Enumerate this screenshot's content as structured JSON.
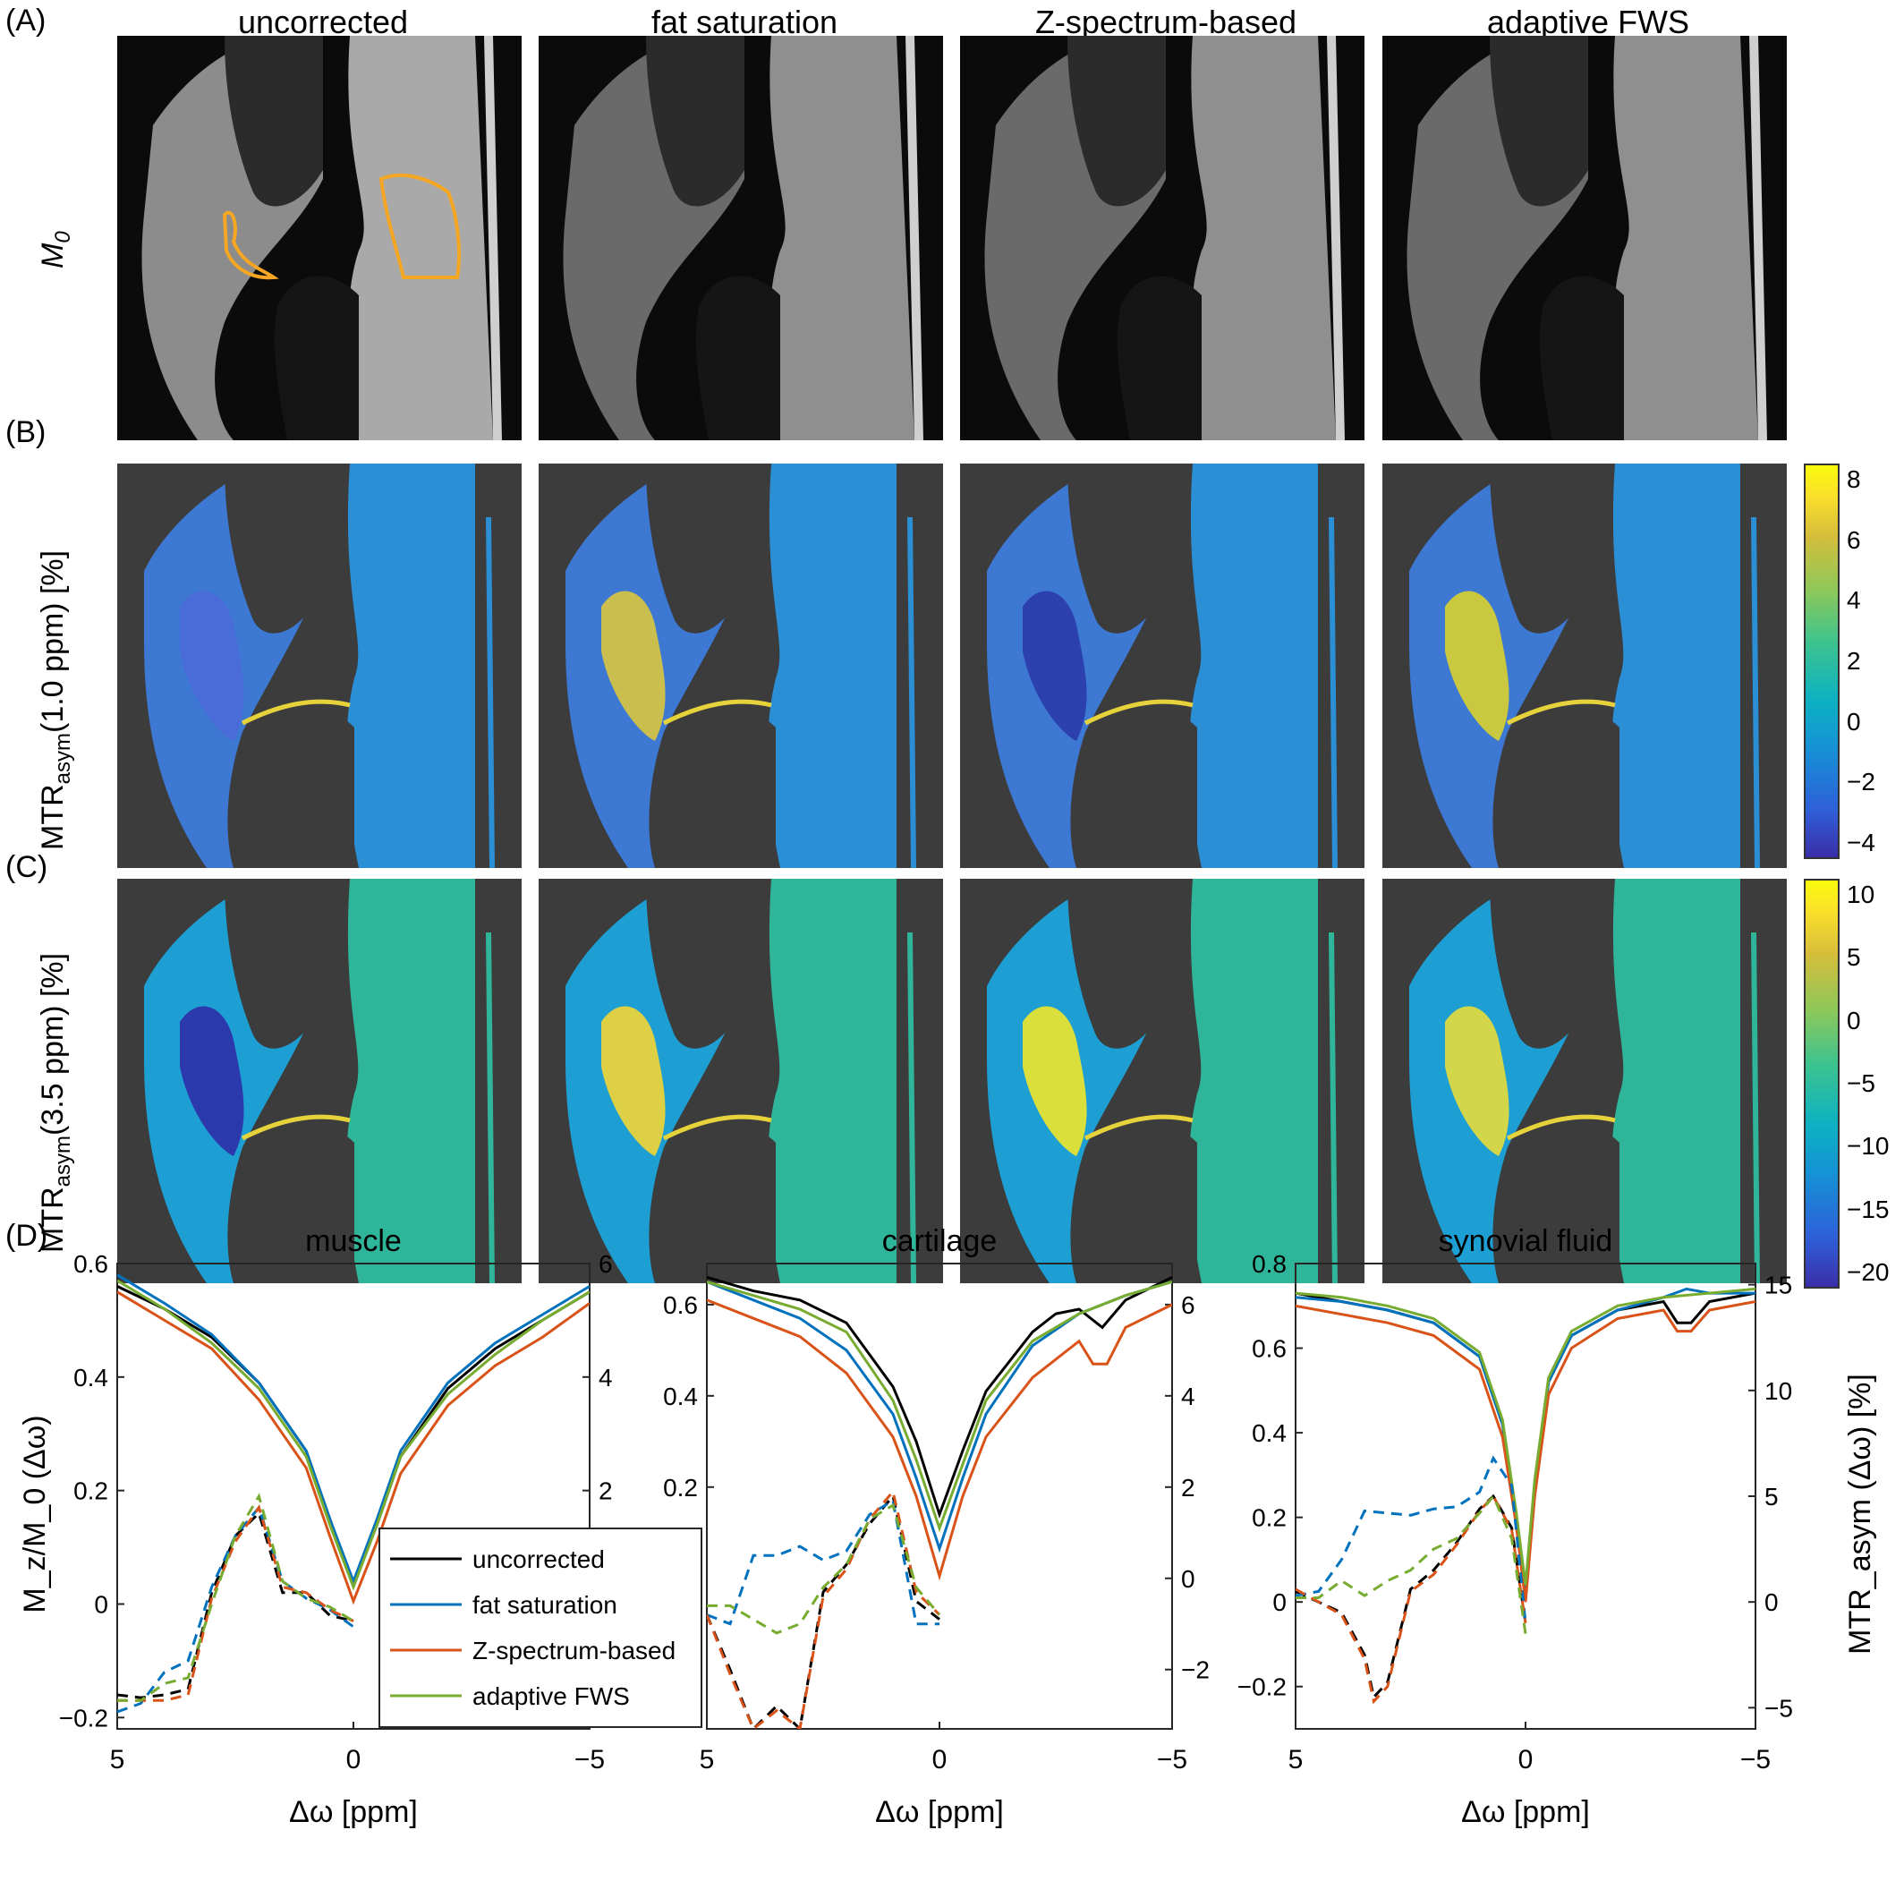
{
  "figure": {
    "panel_labels": {
      "A": "(A)",
      "B": "(B)",
      "C": "(C)",
      "D": "(D)"
    },
    "column_titles": [
      "uncorrected",
      "fat saturation",
      "Z-spectrum-based",
      "adaptive FWS"
    ],
    "row_labels": {
      "A": {
        "main": "M",
        "sub": "0"
      },
      "B": {
        "pre": "MTR",
        "sub": "asym",
        "post": "(1.0 ppm) [%]"
      },
      "C": {
        "pre": "MTR",
        "sub": "asym",
        "post": "(3.5 ppm) [%]"
      }
    },
    "colorbar_B": {
      "ticks": [
        "8",
        "6",
        "4",
        "2",
        "0",
        "−2",
        "−4"
      ]
    },
    "colorbar_C": {
      "ticks": [
        "10",
        "5",
        "0",
        "−5",
        "−10",
        "−15",
        "−20"
      ]
    },
    "colors": {
      "uncorrected": "#000000",
      "fat_saturation": "#0072BD",
      "z_spectrum": "#D95319",
      "adaptive_fws": "#77AC30",
      "roi": "#F5A623"
    }
  },
  "chart_data": [
    {
      "type": "line",
      "title": "muscle",
      "xlabel": "Δω [ppm]",
      "ylabel_left": "M_z/M_0 (Δω)",
      "x_ticks": [
        "5",
        "0",
        "−5"
      ],
      "xlim": [
        5,
        -5
      ],
      "ylim_left": [
        -0.22,
        0.6
      ],
      "ylim_right": [
        -2.2,
        6
      ],
      "left_ticks": [
        "0.6",
        "0.4",
        "0.2",
        "0",
        "−0.2"
      ],
      "right_ticks": [
        "6",
        "4",
        "2"
      ],
      "legend": [
        "uncorrected",
        "fat saturation",
        "Z-spectrum-based",
        "adaptive FWS"
      ],
      "series": [
        {
          "name": "uncorrected",
          "axis": "left",
          "x": [
            5,
            4,
            3,
            2,
            1,
            0.5,
            0,
            -0.5,
            -1,
            -2,
            -3,
            -4,
            -5
          ],
          "y": [
            0.56,
            0.52,
            0.47,
            0.39,
            0.27,
            0.15,
            0.035,
            0.14,
            0.26,
            0.38,
            0.45,
            0.5,
            0.55
          ]
        },
        {
          "name": "fat saturation",
          "axis": "left",
          "x": [
            5,
            4,
            3,
            2,
            1,
            0.5,
            0,
            -0.5,
            -1,
            -2,
            -3,
            -4,
            -5
          ],
          "y": [
            0.58,
            0.53,
            0.475,
            0.39,
            0.27,
            0.15,
            0.04,
            0.15,
            0.27,
            0.39,
            0.46,
            0.51,
            0.56
          ]
        },
        {
          "name": "Z-spectrum-based",
          "axis": "left",
          "x": [
            5,
            4,
            3,
            2,
            1,
            0.5,
            0,
            -0.5,
            -1,
            -2,
            -3,
            -4,
            -5
          ],
          "y": [
            0.55,
            0.5,
            0.45,
            0.36,
            0.24,
            0.12,
            0.005,
            0.11,
            0.23,
            0.35,
            0.42,
            0.47,
            0.53
          ]
        },
        {
          "name": "adaptive FWS",
          "axis": "left",
          "x": [
            5,
            4,
            3,
            2,
            1,
            0.5,
            0,
            -0.5,
            -1,
            -2,
            -3,
            -4,
            -5
          ],
          "y": [
            0.57,
            0.52,
            0.46,
            0.38,
            0.26,
            0.14,
            0.03,
            0.14,
            0.26,
            0.37,
            0.44,
            0.5,
            0.55
          ]
        },
        {
          "name": "uncorrected",
          "axis": "right",
          "dashed": true,
          "x": [
            5,
            4.5,
            4,
            3.5,
            3,
            2.5,
            2,
            1.5,
            1,
            0.5,
            0
          ],
          "y": [
            -1.6,
            -1.65,
            -1.6,
            -1.5,
            0.2,
            1.2,
            1.6,
            0.2,
            0.2,
            -0.2,
            -0.3
          ]
        },
        {
          "name": "fat saturation",
          "axis": "right",
          "dashed": true,
          "x": [
            5,
            4.5,
            4,
            3.5,
            3,
            2.5,
            2,
            1.5,
            1,
            0.5,
            0
          ],
          "y": [
            -1.9,
            -1.75,
            -1.2,
            -1.0,
            0.3,
            1.2,
            1.7,
            0.4,
            0.1,
            -0.1,
            -0.4
          ]
        },
        {
          "name": "Z-spectrum-based",
          "axis": "right",
          "dashed": true,
          "x": [
            5,
            4.5,
            4,
            3.5,
            3,
            2.5,
            2,
            1.5,
            1,
            0.5,
            0
          ],
          "y": [
            -1.7,
            -1.7,
            -1.7,
            -1.6,
            0.1,
            1.1,
            1.7,
            0.3,
            0.2,
            -0.1,
            -0.3
          ]
        },
        {
          "name": "adaptive FWS",
          "axis": "right",
          "dashed": true,
          "x": [
            5,
            4.5,
            4,
            3.5,
            3,
            2.5,
            2,
            1.5,
            1,
            0.5,
            0
          ],
          "y": [
            -1.7,
            -1.7,
            -1.4,
            -1.3,
            0.0,
            1.2,
            1.9,
            0.4,
            0.1,
            -0.05,
            -0.3
          ]
        }
      ]
    },
    {
      "type": "line",
      "title": "cartilage",
      "xlabel": "Δω [ppm]",
      "x_ticks": [
        "5",
        "0",
        "−5"
      ],
      "xlim": [
        5,
        -5
      ],
      "ylim_left": [
        -0.33,
        0.69
      ],
      "ylim_right": [
        -3.3,
        6.9
      ],
      "left_ticks": [
        "0.6",
        "0.4",
        "0.2"
      ],
      "right_ticks": [
        "6",
        "4",
        "2",
        "0",
        "−2"
      ],
      "series": [
        {
          "name": "uncorrected",
          "axis": "left",
          "x": [
            5,
            4,
            3,
            2,
            1,
            0.5,
            0,
            -0.5,
            -1,
            -2,
            -2.5,
            -3,
            -3.5,
            -4,
            -5
          ],
          "y": [
            0.66,
            0.63,
            0.61,
            0.56,
            0.42,
            0.3,
            0.14,
            0.28,
            0.41,
            0.54,
            0.58,
            0.59,
            0.55,
            0.61,
            0.66
          ]
        },
        {
          "name": "fat saturation",
          "axis": "left",
          "x": [
            5,
            4,
            3,
            2,
            1,
            0.5,
            0,
            -0.5,
            -1,
            -2,
            -3,
            -4,
            -5
          ],
          "y": [
            0.65,
            0.61,
            0.57,
            0.5,
            0.36,
            0.22,
            0.065,
            0.22,
            0.36,
            0.51,
            0.58,
            0.62,
            0.65
          ]
        },
        {
          "name": "Z-spectrum-based",
          "axis": "left",
          "x": [
            5,
            4,
            3,
            2,
            1,
            0.5,
            0,
            -0.5,
            -1,
            -2,
            -3,
            -3.3,
            -3.6,
            -4,
            -5
          ],
          "y": [
            0.61,
            0.57,
            0.53,
            0.45,
            0.31,
            0.18,
            0.005,
            0.18,
            0.31,
            0.44,
            0.52,
            0.47,
            0.47,
            0.55,
            0.6
          ]
        },
        {
          "name": "adaptive FWS",
          "axis": "left",
          "x": [
            5,
            4,
            3,
            2,
            1,
            0.5,
            0,
            -0.5,
            -1,
            -2,
            -3,
            -4,
            -5
          ],
          "y": [
            0.65,
            0.62,
            0.59,
            0.54,
            0.39,
            0.26,
            0.11,
            0.25,
            0.39,
            0.52,
            0.58,
            0.62,
            0.65
          ]
        },
        {
          "name": "uncorrected",
          "axis": "right",
          "dashed": true,
          "x": [
            5,
            4.5,
            4,
            3.5,
            3,
            2.5,
            2,
            1.5,
            1,
            0.5,
            0
          ],
          "y": [
            -0.8,
            -2.0,
            -3.3,
            -2.8,
            -3.3,
            -0.3,
            0.3,
            1.2,
            1.8,
            -0.5,
            -0.9
          ]
        },
        {
          "name": "fat saturation",
          "axis": "right",
          "dashed": true,
          "x": [
            5,
            4.5,
            4,
            3.5,
            3,
            2.5,
            2,
            1.5,
            1,
            0.5,
            0
          ],
          "y": [
            -0.8,
            -1.0,
            0.5,
            0.5,
            0.7,
            0.4,
            0.6,
            1.4,
            1.7,
            -1.0,
            -1.0
          ]
        },
        {
          "name": "Z-spectrum-based",
          "axis": "right",
          "dashed": true,
          "x": [
            5,
            4.5,
            4,
            3.5,
            3,
            2.5,
            2,
            1.5,
            1,
            0.5,
            0
          ],
          "y": [
            -0.8,
            -2.1,
            -3.3,
            -2.9,
            -3.3,
            -0.4,
            0.2,
            1.3,
            1.9,
            -0.3,
            -0.8
          ]
        },
        {
          "name": "adaptive FWS",
          "axis": "right",
          "dashed": true,
          "x": [
            5,
            4.5,
            4,
            3.5,
            3,
            2.5,
            2,
            1.5,
            1,
            0.5,
            0
          ],
          "y": [
            -0.6,
            -0.6,
            -0.9,
            -1.2,
            -1.0,
            -0.2,
            0.3,
            1.3,
            1.6,
            -0.2,
            -0.8
          ]
        }
      ]
    },
    {
      "type": "line",
      "title": "synovial fluid",
      "xlabel": "Δω [ppm]",
      "ylabel_right": "MTR_asym (Δω) [%]",
      "x_ticks": [
        "5",
        "0",
        "−5"
      ],
      "xlim": [
        5,
        -5
      ],
      "ylim_left": [
        -0.3,
        0.8
      ],
      "ylim_right": [
        -6,
        16
      ],
      "left_ticks": [
        "0.8",
        "0.6",
        "0.4",
        "0.2",
        "0",
        "−0.2"
      ],
      "right_ticks": [
        "15",
        "10",
        "5",
        "0",
        "−5"
      ],
      "series": [
        {
          "name": "uncorrected",
          "axis": "left",
          "x": [
            5,
            4,
            3,
            2,
            1,
            0.5,
            0.2,
            0,
            -0.2,
            -0.5,
            -1,
            -2,
            -3,
            -3.3,
            -3.6,
            -4,
            -5
          ],
          "y": [
            0.73,
            0.71,
            0.69,
            0.66,
            0.58,
            0.42,
            0.2,
            0.03,
            0.28,
            0.52,
            0.63,
            0.69,
            0.71,
            0.66,
            0.66,
            0.71,
            0.73
          ]
        },
        {
          "name": "fat saturation",
          "axis": "left",
          "x": [
            5,
            4,
            3,
            2,
            1,
            0.5,
            0.2,
            0,
            -0.2,
            -0.5,
            -1,
            -2,
            -3,
            -3.5,
            -4,
            -5
          ],
          "y": [
            0.72,
            0.71,
            0.69,
            0.66,
            0.58,
            0.42,
            0.2,
            0.02,
            0.28,
            0.52,
            0.63,
            0.69,
            0.72,
            0.74,
            0.73,
            0.73
          ]
        },
        {
          "name": "Z-spectrum-based",
          "axis": "left",
          "x": [
            5,
            4,
            3,
            2,
            1,
            0.5,
            0.2,
            0,
            -0.2,
            -0.5,
            -1,
            -2,
            -3,
            -3.3,
            -3.6,
            -4,
            -5
          ],
          "y": [
            0.7,
            0.68,
            0.66,
            0.63,
            0.55,
            0.39,
            0.18,
            0.0,
            0.25,
            0.49,
            0.6,
            0.67,
            0.69,
            0.64,
            0.64,
            0.69,
            0.71
          ]
        },
        {
          "name": "adaptive FWS",
          "axis": "left",
          "x": [
            5,
            4,
            3,
            2,
            1,
            0.5,
            0.2,
            0,
            -0.2,
            -0.5,
            -1,
            -2,
            -3,
            -4,
            -5
          ],
          "y": [
            0.73,
            0.72,
            0.7,
            0.67,
            0.59,
            0.43,
            0.21,
            0.04,
            0.29,
            0.53,
            0.64,
            0.7,
            0.72,
            0.73,
            0.74
          ]
        },
        {
          "name": "uncorrected",
          "axis": "right",
          "dashed": true,
          "x": [
            5,
            4.5,
            4,
            3.5,
            3.3,
            3,
            2.5,
            2,
            1.5,
            1,
            0.7,
            0.3,
            0
          ],
          "y": [
            0.5,
            0.0,
            -0.5,
            -2.5,
            -4.5,
            -3.8,
            0.6,
            1.5,
            2.8,
            4.4,
            5.0,
            3.5,
            -1.0
          ]
        },
        {
          "name": "fat saturation",
          "axis": "right",
          "dashed": true,
          "x": [
            5,
            4.5,
            4,
            3.5,
            3,
            2.5,
            2,
            1.5,
            1,
            0.7,
            0.3,
            0
          ],
          "y": [
            0.3,
            0.5,
            2.0,
            4.3,
            4.2,
            4.1,
            4.4,
            4.5,
            5.2,
            6.8,
            5.5,
            -1.0
          ]
        },
        {
          "name": "Z-spectrum-based",
          "axis": "right",
          "dashed": true,
          "x": [
            5,
            4.5,
            4,
            3.5,
            3.3,
            3,
            2.5,
            2,
            1.5,
            1,
            0.7,
            0.3,
            0
          ],
          "y": [
            0.6,
            0.0,
            -0.6,
            -2.7,
            -4.7,
            -4.0,
            0.5,
            1.3,
            2.7,
            4.3,
            5.0,
            3.4,
            -1.0
          ]
        },
        {
          "name": "adaptive FWS",
          "axis": "right",
          "dashed": true,
          "x": [
            5,
            4.5,
            4,
            3.5,
            3,
            2.5,
            2,
            1.5,
            1,
            0.7,
            0.3,
            0
          ],
          "y": [
            0.2,
            0.2,
            1.0,
            0.3,
            1.0,
            1.5,
            2.5,
            3.0,
            4.2,
            5.0,
            3.0,
            -1.5
          ]
        }
      ]
    }
  ]
}
